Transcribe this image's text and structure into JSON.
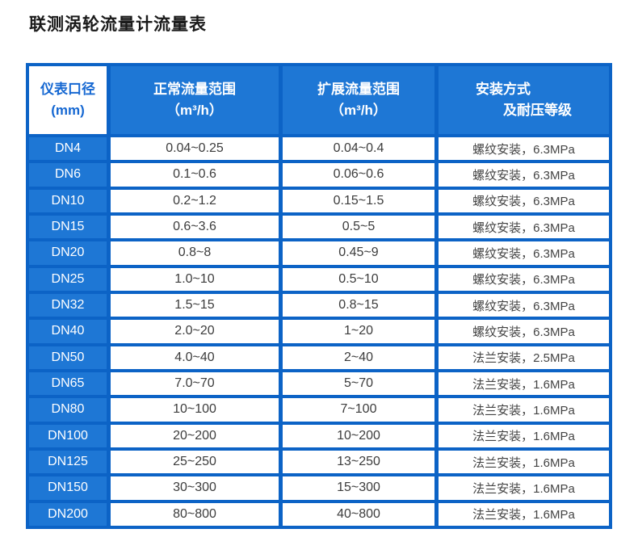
{
  "page": {
    "title": "联测涡轮流量计流量表"
  },
  "colors": {
    "grid_line_blue": "#0c63c6",
    "cell_blue": "#1e77d5",
    "header_text_white": "#ffffff",
    "first_header_text_blue": "#1668d2",
    "data_text": "#3c3c3c",
    "page_background": "#ffffff"
  },
  "table": {
    "headers": [
      {
        "line1": "仪表口径",
        "line2": "(mm)"
      },
      {
        "line1": "正常流量范围",
        "line2": "（m³/h）"
      },
      {
        "line1": "扩展流量范围",
        "line2": "（m³/h）"
      },
      {
        "line1": "安装方式",
        "line2": "及耐压等级"
      }
    ],
    "rows": [
      {
        "dn": "DN4",
        "normal": "0.04~0.25",
        "extended": "0.04~0.4",
        "install": "螺纹安装，6.3MPa"
      },
      {
        "dn": "DN6",
        "normal": "0.1~0.6",
        "extended": "0.06~0.6",
        "install": "螺纹安装，6.3MPa"
      },
      {
        "dn": "DN10",
        "normal": "0.2~1.2",
        "extended": "0.15~1.5",
        "install": "螺纹安装，6.3MPa"
      },
      {
        "dn": "DN15",
        "normal": "0.6~3.6",
        "extended": "0.5~5",
        "install": "螺纹安装，6.3MPa"
      },
      {
        "dn": "DN20",
        "normal": "0.8~8",
        "extended": "0.45~9",
        "install": "螺纹安装，6.3MPa"
      },
      {
        "dn": "DN25",
        "normal": "1.0~10",
        "extended": "0.5~10",
        "install": "螺纹安装，6.3MPa"
      },
      {
        "dn": "DN32",
        "normal": "1.5~15",
        "extended": "0.8~15",
        "install": "螺纹安装，6.3MPa"
      },
      {
        "dn": "DN40",
        "normal": "2.0~20",
        "extended": "1~20",
        "install": "螺纹安装，6.3MPa"
      },
      {
        "dn": "DN50",
        "normal": "4.0~40",
        "extended": "2~40",
        "install": "法兰安装，2.5MPa"
      },
      {
        "dn": "DN65",
        "normal": "7.0~70",
        "extended": "5~70",
        "install": "法兰安装，1.6MPa"
      },
      {
        "dn": "DN80",
        "normal": "10~100",
        "extended": "7~100",
        "install": "法兰安装，1.6MPa"
      },
      {
        "dn": "DN100",
        "normal": "20~200",
        "extended": "10~200",
        "install": "法兰安装，1.6MPa"
      },
      {
        "dn": "DN125",
        "normal": "25~250",
        "extended": "13~250",
        "install": "法兰安装，1.6MPa"
      },
      {
        "dn": "DN150",
        "normal": "30~300",
        "extended": "15~300",
        "install": "法兰安装，1.6MPa"
      },
      {
        "dn": "DN200",
        "normal": "80~800",
        "extended": "40~800",
        "install": "法兰安装，1.6MPa"
      }
    ]
  }
}
